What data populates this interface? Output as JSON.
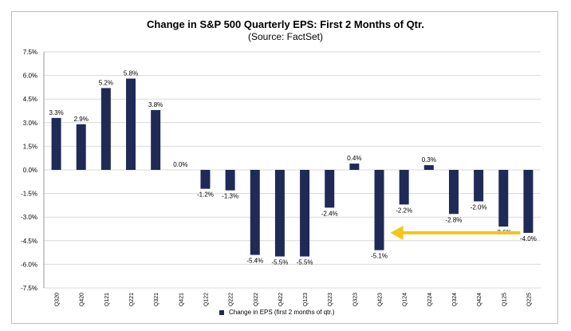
{
  "colors": {
    "bar": "#1f2a56",
    "arrow": "#f5c518",
    "grid": "#d9d9d9"
  },
  "chart_data": {
    "type": "bar",
    "title": "Change in S&P 500 Quarterly EPS: First 2 Months of Qtr.",
    "subtitle": "(Source: FactSet)",
    "categories": [
      "Q320",
      "Q420",
      "Q121",
      "Q221",
      "Q321",
      "Q421",
      "Q122",
      "Q222",
      "Q322",
      "Q422",
      "Q123",
      "Q223",
      "Q323",
      "Q423",
      "Q124",
      "Q224",
      "Q324",
      "Q424",
      "Q125",
      "Q225"
    ],
    "series": [
      {
        "name": "Change in EPS (first 2 months of qtr.)",
        "values": [
          3.3,
          2.9,
          5.2,
          5.8,
          3.8,
          0.0,
          -1.2,
          -1.3,
          -5.4,
          -5.5,
          -5.5,
          -2.4,
          0.4,
          -5.1,
          -2.2,
          0.3,
          -2.8,
          -2.0,
          -3.6,
          -4.0
        ]
      }
    ],
    "data_labels": [
      "3.3%",
      "2.9%",
      "5.2%",
      "5.8%",
      "3.8%",
      "0.0%",
      "-1.2%",
      "-1.3%",
      "-5.4%",
      "-5.5%",
      "-5.5%",
      "-2.4%",
      "0.4%",
      "-5.1%",
      "-2.2%",
      "0.3%",
      "-2.8%",
      "-2.0%",
      "-3.6%",
      "-4.0%"
    ],
    "ylim": [
      -7.5,
      7.5
    ],
    "yticks": [
      "7.5%",
      "6.0%",
      "4.5%",
      "3.0%",
      "1.5%",
      "0.0%",
      "-1.5%",
      "-3.0%",
      "-4.5%",
      "-6.0%",
      "-7.5%"
    ],
    "ytick_values": [
      7.5,
      6.0,
      4.5,
      3.0,
      1.5,
      0.0,
      -1.5,
      -3.0,
      -4.5,
      -6.0,
      -7.5
    ],
    "grid": "horizontal",
    "legend": "bottom-center",
    "annotation": {
      "type": "arrow",
      "from_category": "Q225",
      "to_category": "Q423",
      "at_value": -4.0
    }
  }
}
